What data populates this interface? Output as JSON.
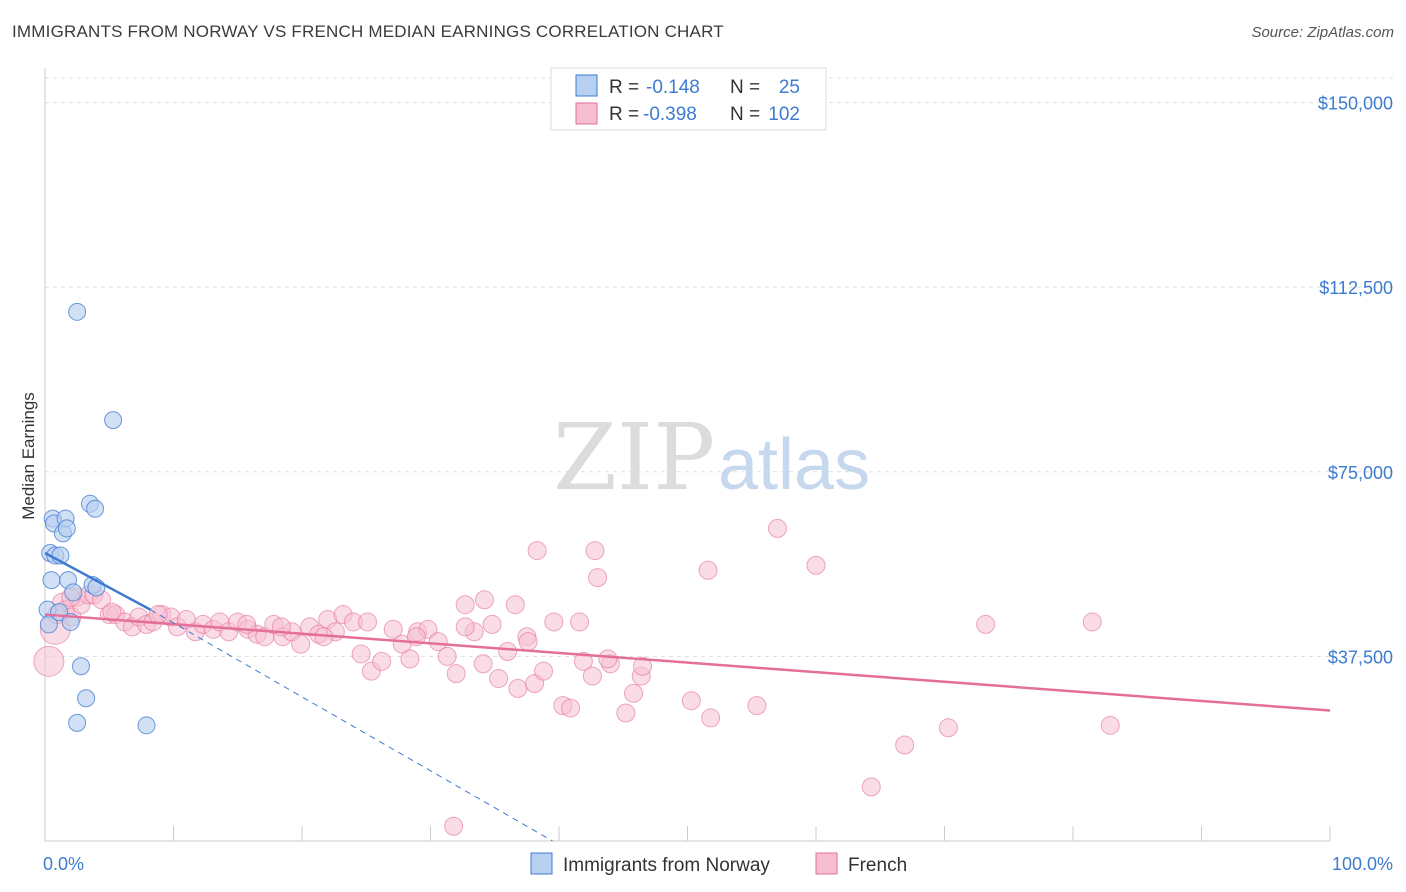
{
  "title": "IMMIGRANTS FROM NORWAY VS FRENCH MEDIAN EARNINGS CORRELATION CHART",
  "source": "Source: ZipAtlas.com",
  "watermark": {
    "zip": "ZIP",
    "atlas": "atlas"
  },
  "colors": {
    "norway": "#3d7bd0",
    "norway_fill": "#b8d0f0",
    "french": "#e36f9a",
    "french_fill": "#f6bfd1",
    "grid": "#dddddd",
    "axis": "#cccccc",
    "label": "#3d7bd0"
  },
  "legend": {
    "rows": [
      {
        "r_label": "R =",
        "r_value": "-0.148",
        "n_label": "N =",
        "n_value": "25"
      },
      {
        "r_label": "R =",
        "r_value": "-0.398",
        "n_label": "N =",
        "n_value": "102"
      }
    ]
  },
  "bottom_legend": [
    "Immigrants from Norway",
    "French"
  ],
  "chart_data": {
    "type": "scatter",
    "title": "IMMIGRANTS FROM NORWAY VS FRENCH MEDIAN EARNINGS CORRELATION CHART",
    "xlabel": "",
    "ylabel": "Median Earnings",
    "xlim": [
      0,
      100
    ],
    "ylim": [
      0,
      155000
    ],
    "x_tick_labels": [
      "0.0%",
      "100.0%"
    ],
    "y_ticks": [
      37500,
      75000,
      112500,
      150000
    ],
    "y_tick_labels": [
      "$37,500",
      "$75,000",
      "$112,500",
      "$150,000"
    ],
    "grid": true,
    "legend_position": "top-center",
    "series": [
      {
        "name": "Immigrants from Norway",
        "points": [
          [
            0.2,
            47000
          ],
          [
            0.3,
            44000
          ],
          [
            0.4,
            58500
          ],
          [
            0.5,
            53000
          ],
          [
            0.6,
            65500
          ],
          [
            0.7,
            64500
          ],
          [
            0.8,
            58000
          ],
          [
            1.1,
            46500
          ],
          [
            1.2,
            58000
          ],
          [
            1.4,
            62500
          ],
          [
            1.6,
            65500
          ],
          [
            1.7,
            63500
          ],
          [
            1.8,
            53000
          ],
          [
            2.0,
            44500
          ],
          [
            2.2,
            50500
          ],
          [
            2.5,
            24000
          ],
          [
            2.8,
            35500
          ],
          [
            3.2,
            29000
          ],
          [
            3.5,
            68500
          ],
          [
            3.9,
            67500
          ],
          [
            3.7,
            52000
          ],
          [
            4.0,
            51500
          ],
          [
            2.5,
            107500
          ],
          [
            5.3,
            85500
          ],
          [
            7.9,
            23500
          ]
        ],
        "trend": {
          "x": [
            0,
            8.2
          ],
          "y": [
            58500,
            47000
          ]
        },
        "trend_extended": {
          "x": [
            8.2,
            39.5
          ],
          "y": [
            47000,
            0
          ]
        }
      },
      {
        "name": "French",
        "points": [
          [
            0.3,
            36500
          ],
          [
            0.8,
            43000
          ],
          [
            1.3,
            48500
          ],
          [
            1.6,
            47000
          ],
          [
            2.1,
            45500
          ],
          [
            2.5,
            49500
          ],
          [
            2.8,
            48000
          ],
          [
            3.4,
            50000
          ],
          [
            3.8,
            50000
          ],
          [
            4.4,
            49000
          ],
          [
            5.0,
            46000
          ],
          [
            5.5,
            46000
          ],
          [
            6.2,
            44500
          ],
          [
            6.8,
            43500
          ],
          [
            7.3,
            45500
          ],
          [
            7.9,
            44000
          ],
          [
            8.4,
            44500
          ],
          [
            9.1,
            46000
          ],
          [
            9.8,
            45500
          ],
          [
            10.3,
            43500
          ],
          [
            11.0,
            45000
          ],
          [
            11.7,
            42500
          ],
          [
            12.3,
            44000
          ],
          [
            13.1,
            43000
          ],
          [
            13.6,
            44500
          ],
          [
            14.3,
            42500
          ],
          [
            15.0,
            44500
          ],
          [
            15.8,
            43000
          ],
          [
            16.5,
            42000
          ],
          [
            17.1,
            41500
          ],
          [
            17.8,
            44000
          ],
          [
            18.5,
            41500
          ],
          [
            19.2,
            42500
          ],
          [
            19.9,
            40000
          ],
          [
            20.6,
            43500
          ],
          [
            21.3,
            42000
          ],
          [
            22.0,
            45000
          ],
          [
            22.6,
            42500
          ],
          [
            23.2,
            46000
          ],
          [
            24.0,
            44500
          ],
          [
            24.6,
            38000
          ],
          [
            25.4,
            34500
          ],
          [
            26.2,
            36500
          ],
          [
            27.1,
            43000
          ],
          [
            27.8,
            40000
          ],
          [
            28.4,
            37000
          ],
          [
            29.0,
            42500
          ],
          [
            29.8,
            43000
          ],
          [
            30.6,
            40500
          ],
          [
            31.3,
            37500
          ],
          [
            32.0,
            34000
          ],
          [
            32.7,
            48000
          ],
          [
            33.4,
            42500
          ],
          [
            34.1,
            36000
          ],
          [
            34.8,
            44000
          ],
          [
            35.3,
            33000
          ],
          [
            36.0,
            38500
          ],
          [
            36.8,
            31000
          ],
          [
            37.5,
            41500
          ],
          [
            38.1,
            32000
          ],
          [
            38.8,
            34500
          ],
          [
            39.6,
            44500
          ],
          [
            40.3,
            27500
          ],
          [
            40.9,
            27000
          ],
          [
            41.6,
            44500
          ],
          [
            41.9,
            36500
          ],
          [
            42.6,
            33500
          ],
          [
            44.0,
            36000
          ],
          [
            45.2,
            26000
          ],
          [
            45.8,
            30000
          ],
          [
            46.4,
            33500
          ],
          [
            34.2,
            49000
          ],
          [
            36.6,
            48000
          ],
          [
            38.3,
            59000
          ],
          [
            42.8,
            59000
          ],
          [
            43.0,
            53500
          ],
          [
            46.5,
            35500
          ],
          [
            50.3,
            28500
          ],
          [
            51.6,
            55000
          ],
          [
            51.8,
            25000
          ],
          [
            55.4,
            27500
          ],
          [
            57.0,
            63500
          ],
          [
            60.0,
            56000
          ],
          [
            64.3,
            11000
          ],
          [
            66.9,
            19500
          ],
          [
            70.3,
            23000
          ],
          [
            73.2,
            44000
          ],
          [
            81.5,
            44500
          ],
          [
            82.9,
            23500
          ],
          [
            2.0,
            49500
          ],
          [
            5.2,
            46500
          ],
          [
            8.8,
            46000
          ],
          [
            15.7,
            44000
          ],
          [
            18.4,
            43500
          ],
          [
            21.7,
            41500
          ],
          [
            25.1,
            44500
          ],
          [
            28.9,
            41500
          ],
          [
            32.7,
            43500
          ],
          [
            37.6,
            40500
          ],
          [
            31.8,
            3000
          ],
          [
            43.8,
            37000
          ],
          [
            0.9,
            46000
          ]
        ],
        "trend": {
          "x": [
            0,
            100
          ],
          "y": [
            46000,
            26500
          ]
        }
      }
    ]
  }
}
